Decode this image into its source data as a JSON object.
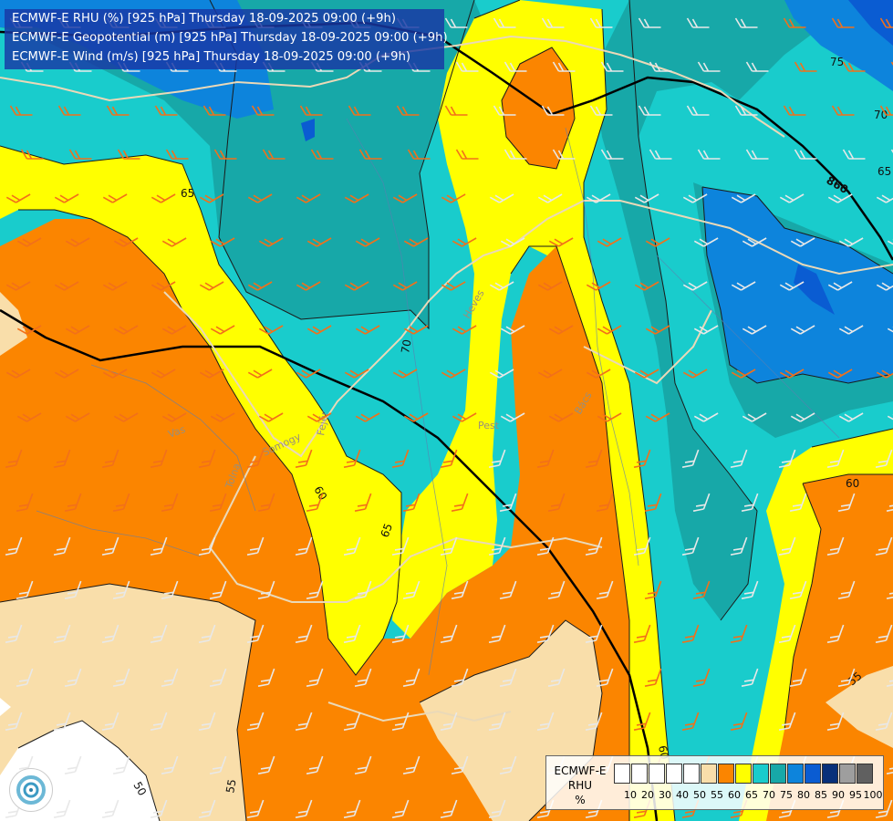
{
  "titles": [
    "ECMWF-E RHU (%) [925 hPa] Thursday 18-09-2025 09:00 (+9h)",
    "ECMWF-E Geopotential (m) [925 hPa] Thursday 18-09-2025 09:00 (+9h)",
    "ECMWF-E Wind (m/s) [925 hPa] Thursday 18-09-2025 09:00 (+9h)"
  ],
  "legend": {
    "line1": "ECMWF-E",
    "line2": "RHU",
    "line3": "%",
    "ticks": [
      "10",
      "20",
      "30",
      "40",
      "50",
      "55",
      "60",
      "65",
      "70",
      "75",
      "80",
      "85",
      "90",
      "95",
      "100"
    ],
    "colors": [
      "#ffffff",
      "#ffffff",
      "#ffffff",
      "#ffffff",
      "#ffffff",
      "#f9deaa",
      "#fb8500",
      "#ffff00",
      "#19cccc",
      "#17a8a8",
      "#0d84dc",
      "#0a5cd2",
      "#08307a",
      "#9e9e9e",
      "#606060"
    ]
  },
  "contour_labels": [
    "75",
    "70",
    "65",
    "860",
    "65",
    "70",
    "60",
    "65",
    "60",
    "55",
    "50",
    "55",
    "60"
  ],
  "place_labels": [
    "Pest",
    "Bács",
    "Fejér",
    "Somogy",
    "Tolna",
    "Vas",
    "Heves"
  ],
  "colors": {
    "rh55": "#f9deaa",
    "rh60": "#fb8500",
    "rh65": "#ffff00",
    "rh70": "#19cccc",
    "rh75": "#17a8a8",
    "rh80": "#0d84dc",
    "rh85": "#0a5cd2",
    "wind_orange": "#f2701a",
    "wind_white": "#e8e8e8"
  },
  "logo": "ecmwf-logo-icon"
}
